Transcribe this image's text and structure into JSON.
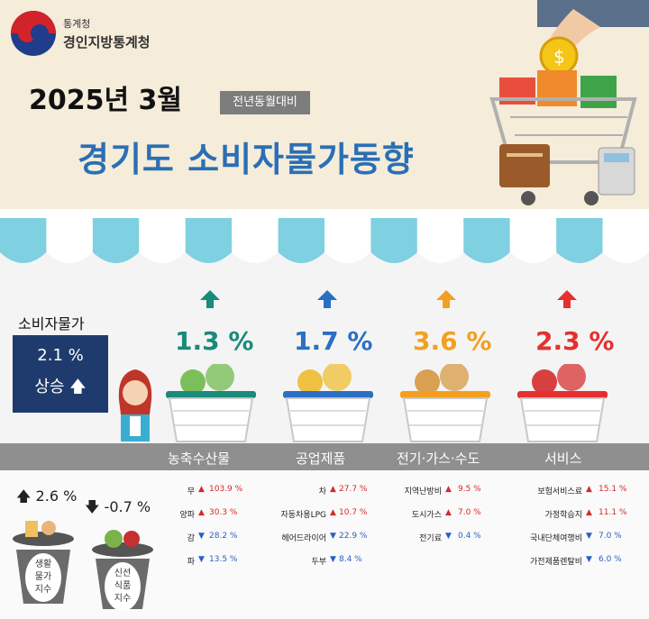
{
  "header": {
    "org_small": "통계청",
    "org_name": "경인지방통계청",
    "date": "2025년 3월",
    "yoy_badge": "전년동월대비",
    "title": "경기도 소비자물가동향"
  },
  "cpi": {
    "label": "소비자물가",
    "value": "2.1  %",
    "status": "상승",
    "arrow": "up-arrow-icon"
  },
  "categories": [
    {
      "name": "농축수산물",
      "value": "1.3 %",
      "color": "#1a8a7a",
      "arrow": "up-arrow-icon"
    },
    {
      "name": "공업제품",
      "value": "1.7 %",
      "color": "#2a6fc4",
      "arrow": "up-arrow-icon"
    },
    {
      "name": "전기·가스·수도",
      "value": "3.6 %",
      "color": "#f2a01e",
      "arrow": "up-arrow-icon"
    },
    {
      "name": "서비스",
      "value": "2.3 %",
      "color": "#e53030",
      "arrow": "up-arrow-icon"
    }
  ],
  "items": {
    "agri": [
      {
        "name": "무",
        "value": "103.9  %",
        "dir": "up"
      },
      {
        "name": "양파",
        "value": "30.3  %",
        "dir": "up"
      },
      {
        "name": "감",
        "value": "28.2  %",
        "dir": "down"
      },
      {
        "name": "파",
        "value": "13.5  %",
        "dir": "down"
      }
    ],
    "industrial": [
      {
        "name": "차",
        "value": "27.7  %",
        "dir": "up"
      },
      {
        "name": "자동차용LPG",
        "value": "10.7  %",
        "dir": "up"
      },
      {
        "name": "헤어드라이어",
        "value": "22.9  %",
        "dir": "down"
      },
      {
        "name": "두부",
        "value": "8.4  %",
        "dir": "down"
      }
    ],
    "utility": [
      {
        "name": "지역난방비",
        "value": "9.5  %",
        "dir": "up"
      },
      {
        "name": "도시가스",
        "value": "7.0  %",
        "dir": "up"
      },
      {
        "name": "전기료",
        "value": "0.4  %",
        "dir": "down"
      }
    ],
    "service": [
      {
        "name": "보험서비스료",
        "value": "15.1  %",
        "dir": "up"
      },
      {
        "name": "가정학습지",
        "value": "11.1  %",
        "dir": "up"
      },
      {
        "name": "국내단체여행비",
        "value": "7.0  %",
        "dir": "down"
      },
      {
        "name": "가전제품렌탈비",
        "value": "6.0  %",
        "dir": "down"
      }
    ]
  },
  "indices": {
    "living": {
      "value": "2.6  %",
      "label": "생활 물가 지수",
      "l1": "생활",
      "l2": "물가",
      "l3": "지수"
    },
    "fresh": {
      "value": "-0.7  %",
      "label": "신선 식품 지수",
      "l1": "신선",
      "l2": "식품",
      "l3": "지수"
    }
  },
  "colors": {
    "up": "#d42a2a",
    "down": "#2a5fc4",
    "title": "#2a6fb5",
    "cpi_box": "#1f3b6d"
  }
}
